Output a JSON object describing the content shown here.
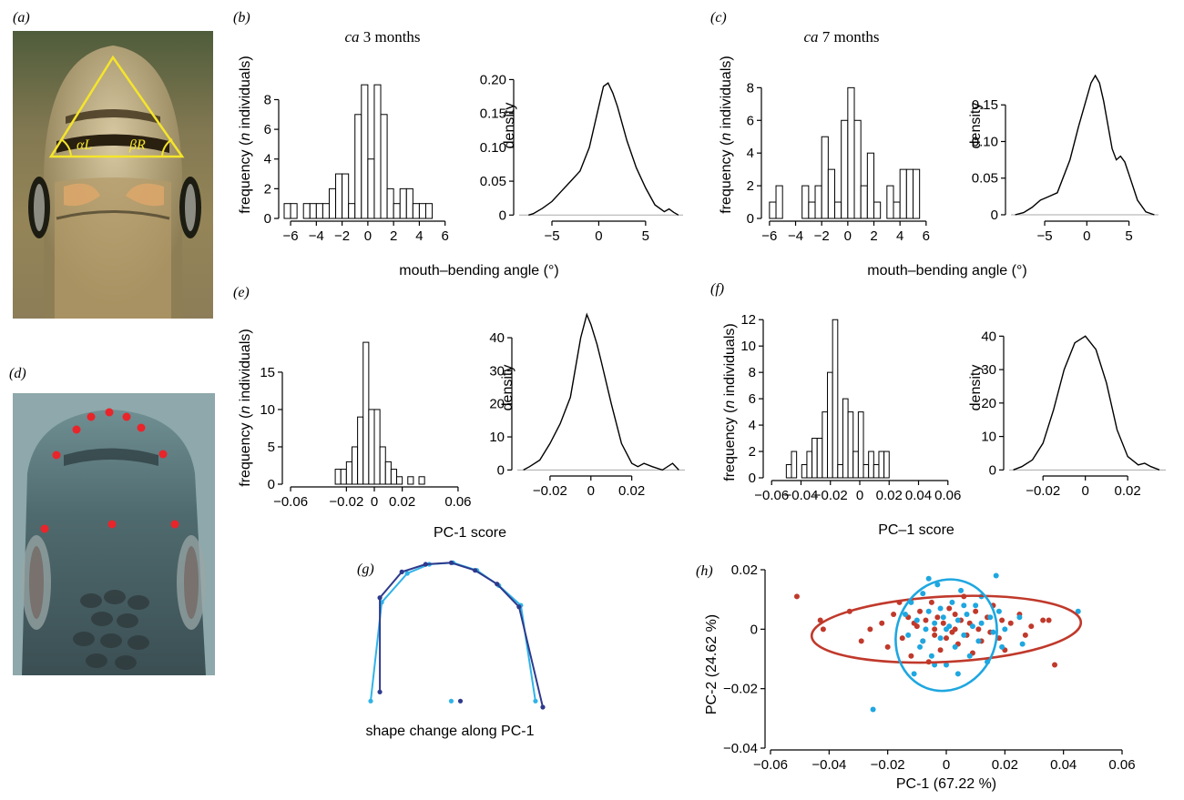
{
  "panels": {
    "a": {
      "label": "(a)",
      "angle_left": "αL",
      "angle_right": "βR"
    },
    "b": {
      "label": "(b)",
      "title_italic": "ca",
      "title_rest": " 3 months"
    },
    "c": {
      "label": "(c)",
      "title_italic": "ca",
      "title_rest": " 7 months"
    },
    "d": {
      "label": "(d)"
    },
    "e": {
      "label": "(e)"
    },
    "f": {
      "label": "(f)"
    },
    "g": {
      "label": "(g)",
      "caption": "shape change along PC-1"
    },
    "h": {
      "label": "(h)"
    }
  },
  "labels": {
    "freq_row1_pre": "frequency (",
    "freq_n": "n",
    "freq_row1_post": " individuals)",
    "freq_e_pre": "frequency (",
    "freq_e_post": "  individuals)",
    "density": "density",
    "mouth_angle": "mouth–bending angle (°)",
    "pc1_score_e": "PC-1 score",
    "pc1_score_f": "PC–1 score",
    "pc1_h": "PC-1 (67.22 %)",
    "pc2_h": "PC-2  (24.62 %)"
  },
  "colors": {
    "red": "#c0392b",
    "blue": "#1ea7e0",
    "dark_blue": "#2e3a8c",
    "light_blue": "#2fb3e8",
    "yellow": "#f5e52a",
    "landmark": "#e8252a"
  },
  "chart_data": [
    {
      "id": "b-hist",
      "type": "bar",
      "title": "ca 3 months",
      "xlabel": "mouth–bending angle (°)",
      "ylabel": "frequency (n individuals)",
      "xlim": [
        -6.5,
        6.8
      ],
      "ylim": [
        0,
        9.5
      ],
      "xticks": [
        -6,
        -4,
        -2,
        0,
        2,
        4,
        6
      ],
      "yticks": [
        0,
        2,
        4,
        6,
        8
      ],
      "bin_start": -6.5,
      "bin_width": 0.5,
      "values": [
        1,
        1,
        0,
        1,
        1,
        1,
        1,
        2,
        3,
        3,
        1,
        7,
        9,
        4,
        9,
        7,
        2,
        1,
        2,
        2,
        1,
        1,
        1,
        0
      ]
    },
    {
      "id": "b-dens",
      "type": "line",
      "ylabel": "density",
      "xlim": [
        -8.5,
        9
      ],
      "ylim": [
        -0.005,
        0.21
      ],
      "xticks": [
        -5,
        0,
        5
      ],
      "yticks": [
        0,
        0.05,
        0.1,
        0.15,
        0.2
      ],
      "ytick_labels": [
        "0",
        "0.05",
        "0.10",
        "0.15",
        "0.20"
      ],
      "x": [
        -7.5,
        -7,
        -6,
        -5,
        -4,
        -3,
        -2,
        -1,
        0,
        0.5,
        1,
        1.5,
        2,
        3,
        4,
        4.5,
        5,
        6,
        7,
        7.5,
        8,
        8.5
      ],
      "y": [
        0,
        0.002,
        0.01,
        0.02,
        0.035,
        0.05,
        0.065,
        0.1,
        0.16,
        0.19,
        0.195,
        0.18,
        0.16,
        0.11,
        0.07,
        0.055,
        0.04,
        0.015,
        0.005,
        0.009,
        0.004,
        0
      ]
    },
    {
      "id": "c-hist",
      "type": "bar",
      "title": "ca 7 months",
      "xlabel": "mouth–bending angle (°)",
      "ylabel": "frequency (n individuals)",
      "xlim": [
        -6.2,
        6.5
      ],
      "ylim": [
        0,
        8.8
      ],
      "xticks": [
        -6,
        -4,
        -2,
        0,
        2,
        4,
        6
      ],
      "yticks": [
        0,
        2,
        4,
        6,
        8
      ],
      "bin_start": -6,
      "bin_width": 0.5,
      "values": [
        1,
        2,
        0,
        0,
        0,
        2,
        1,
        2,
        5,
        3,
        1,
        6,
        8,
        6,
        2,
        4,
        1,
        0,
        2,
        1,
        3,
        3,
        3
      ]
    },
    {
      "id": "c-dens",
      "type": "line",
      "ylabel": "density",
      "xlim": [
        -9,
        8.5
      ],
      "ylim": [
        -0.005,
        0.2
      ],
      "xticks": [
        -5,
        0,
        5
      ],
      "yticks": [
        0,
        0.05,
        0.1,
        0.15
      ],
      "ytick_labels": [
        "0",
        "0.05",
        "0.10",
        "0.15"
      ],
      "x": [
        -8.5,
        -7.5,
        -6.5,
        -5.5,
        -4.5,
        -3.5,
        -2,
        -1,
        0,
        0.5,
        1,
        1.5,
        2,
        3,
        3.5,
        4,
        4.5,
        5,
        6,
        7,
        8
      ],
      "y": [
        0,
        0.003,
        0.01,
        0.02,
        0.025,
        0.03,
        0.075,
        0.12,
        0.16,
        0.18,
        0.19,
        0.18,
        0.155,
        0.09,
        0.075,
        0.08,
        0.072,
        0.055,
        0.02,
        0.004,
        0
      ]
    },
    {
      "id": "e-hist",
      "type": "bar",
      "xlabel": "PC-1 score",
      "ylabel": "frequency (n  individuals)",
      "xlim": [
        -0.062,
        0.062
      ],
      "ylim": [
        0,
        19.5
      ],
      "xticks": [
        -0.06,
        -0.02,
        0,
        0.02,
        0.06
      ],
      "xtick_labels": [
        "−0.06",
        "−0.02",
        "0",
        "0.02",
        "0.06"
      ],
      "yticks": [
        0,
        5,
        10,
        15
      ],
      "bin_start": -0.028,
      "bin_width": 0.004,
      "values": [
        2,
        2,
        3,
        5,
        9,
        19,
        10,
        10,
        5,
        3,
        2,
        1,
        0,
        1,
        0,
        1
      ]
    },
    {
      "id": "e-dens",
      "type": "line",
      "ylabel": "density",
      "xlim": [
        -0.036,
        0.046
      ],
      "ylim": [
        -1,
        48
      ],
      "xticks": [
        -0.02,
        0,
        0.02
      ],
      "xtick_labels": [
        "−0.02",
        "0",
        "0.02"
      ],
      "yticks": [
        0,
        10,
        20,
        30,
        40
      ],
      "x": [
        -0.033,
        -0.03,
        -0.025,
        -0.02,
        -0.015,
        -0.01,
        -0.005,
        -0.002,
        0,
        0.003,
        0.005,
        0.01,
        0.015,
        0.02,
        0.023,
        0.026,
        0.03,
        0.035,
        0.04,
        0.043
      ],
      "y": [
        0,
        1,
        3,
        8,
        14,
        22,
        40,
        47,
        44,
        38,
        33,
        20,
        8,
        2,
        1,
        2,
        1,
        0,
        2,
        0
      ]
    },
    {
      "id": "f-hist",
      "type": "bar",
      "xlabel": "PC–1 score",
      "ylabel": "frequency (n individuals)",
      "xlim": [
        -0.062,
        0.062
      ],
      "ylim": [
        0,
        12.5
      ],
      "xticks": [
        -0.06,
        -0.04,
        -0.02,
        0,
        0.02,
        0.04,
        0.06
      ],
      "xtick_labels": [
        "−0.06",
        "−0.04",
        "−0.02",
        "0",
        "0.02",
        "0.04",
        "0.06"
      ],
      "yticks": [
        0,
        2,
        4,
        6,
        8,
        10,
        12
      ],
      "bin_start": -0.05,
      "bin_width": 0.0035,
      "values": [
        1,
        2,
        0,
        1,
        2,
        3,
        3,
        5,
        8,
        12,
        1,
        6,
        5,
        2,
        5,
        1,
        2,
        1,
        2,
        2
      ]
    },
    {
      "id": "f-dens",
      "type": "line",
      "ylabel": "density",
      "xlim": [
        -0.036,
        0.038
      ],
      "ylim": [
        -1,
        42
      ],
      "xticks": [
        -0.02,
        0,
        0.02
      ],
      "xtick_labels": [
        "−0.02",
        "0",
        "0.02"
      ],
      "yticks": [
        0,
        10,
        20,
        30,
        40
      ],
      "x": [
        -0.034,
        -0.03,
        -0.025,
        -0.02,
        -0.015,
        -0.01,
        -0.005,
        0,
        0.005,
        0.01,
        0.015,
        0.02,
        0.025,
        0.028,
        0.031,
        0.035
      ],
      "y": [
        0,
        1,
        3,
        8,
        18,
        30,
        38,
        40,
        36,
        26,
        12,
        4,
        1.5,
        2,
        1,
        0
      ]
    },
    {
      "id": "g-shape",
      "type": "line",
      "caption": "shape change along PC-1",
      "xlim": [
        0,
        1
      ],
      "ylim": [
        0,
        1
      ],
      "series": [
        {
          "color": "#2fb3e8",
          "x": [
            0.0,
            0.06,
            0.2,
            0.32,
            0.45,
            0.58,
            0.7,
            0.82,
            0.9
          ],
          "y": [
            0.1,
            0.75,
            0.94,
            1.0,
            1.01,
            0.96,
            0.86,
            0.73,
            0.1
          ],
          "extra_point": [
            0.44,
            0.1
          ]
        },
        {
          "color": "#2e3a8c",
          "x": [
            0.05,
            0.05,
            0.17,
            0.3,
            0.44,
            0.57,
            0.69,
            0.81,
            0.94
          ],
          "y": [
            0.16,
            0.78,
            0.95,
            1.0,
            1.01,
            0.96,
            0.87,
            0.72,
            0.06
          ],
          "extra_point": [
            0.49,
            0.1
          ]
        }
      ]
    },
    {
      "id": "h-scatter",
      "type": "scatter",
      "xlabel": "PC-1 (67.22 %)",
      "ylabel": "PC-2  (24.62 %)",
      "xlim": [
        -0.06,
        0.06
      ],
      "ylim": [
        -0.04,
        0.02
      ],
      "xticks": [
        -0.06,
        -0.04,
        -0.02,
        0,
        0.02,
        0.04,
        0.06
      ],
      "xtick_labels": [
        "−0.06",
        "−0.04",
        "−0.02",
        "0",
        "0.02",
        "0.04",
        "0.06"
      ],
      "yticks": [
        -0.04,
        -0.02,
        0,
        0.02
      ],
      "ytick_labels": [
        "−0.04",
        "−0.02",
        "0",
        "0.02"
      ],
      "series": [
        {
          "color": "#c0392b",
          "ellipse": {
            "cx": 0.0,
            "cy": 0.0,
            "rx": 0.046,
            "ry": 0.011,
            "angle": -3
          },
          "points": [
            [
              -0.051,
              0.011
            ],
            [
              -0.043,
              0.003
            ],
            [
              -0.042,
              0.0
            ],
            [
              -0.033,
              0.006
            ],
            [
              -0.029,
              -0.004
            ],
            [
              -0.026,
              0.0
            ],
            [
              -0.022,
              0.002
            ],
            [
              -0.02,
              -0.006
            ],
            [
              -0.018,
              0.005
            ],
            [
              -0.016,
              0.009
            ],
            [
              -0.015,
              -0.003
            ],
            [
              -0.013,
              0.004
            ],
            [
              -0.012,
              -0.009
            ],
            [
              -0.01,
              0.001
            ],
            [
              -0.009,
              0.006
            ],
            [
              -0.008,
              -0.004
            ],
            [
              -0.007,
              0.003
            ],
            [
              -0.006,
              -0.011
            ],
            [
              -0.005,
              0.009
            ],
            [
              -0.004,
              0.0
            ],
            [
              -0.003,
              0.004
            ],
            [
              -0.002,
              -0.007
            ],
            [
              -0.001,
              0.002
            ],
            [
              0.0,
              -0.003
            ],
            [
              0.001,
              0.007
            ],
            [
              0.002,
              -0.001
            ],
            [
              0.003,
              0.005
            ],
            [
              0.004,
              -0.005
            ],
            [
              0.005,
              0.003
            ],
            [
              0.006,
              0.011
            ],
            [
              0.007,
              -0.002
            ],
            [
              0.008,
              0.002
            ],
            [
              0.009,
              -0.008
            ],
            [
              0.01,
              0.006
            ],
            [
              0.011,
              0.0
            ],
            [
              0.012,
              -0.004
            ],
            [
              0.014,
              0.004
            ],
            [
              0.015,
              -0.001
            ],
            [
              0.016,
              0.008
            ],
            [
              0.018,
              -0.003
            ],
            [
              0.019,
              0.003
            ],
            [
              0.02,
              -0.007
            ],
            [
              0.022,
              0.002
            ],
            [
              0.025,
              0.005
            ],
            [
              0.027,
              -0.002
            ],
            [
              0.029,
              0.001
            ],
            [
              0.033,
              0.003
            ],
            [
              0.035,
              0.003
            ],
            [
              0.037,
              -0.012
            ],
            [
              -0.011,
              0.002
            ],
            [
              0.003,
              0.0
            ],
            [
              -0.004,
              -0.002
            ]
          ]
        },
        {
          "color": "#1ea7e0",
          "ellipse": {
            "cx": 0.0,
            "cy": -0.002,
            "rx": 0.017,
            "ry": 0.019,
            "angle": 20
          },
          "points": [
            [
              -0.025,
              -0.027
            ],
            [
              -0.014,
              0.005
            ],
            [
              -0.013,
              -0.002
            ],
            [
              -0.012,
              0.009
            ],
            [
              -0.011,
              -0.015
            ],
            [
              -0.01,
              0.003
            ],
            [
              -0.009,
              -0.006
            ],
            [
              -0.008,
              0.012
            ],
            [
              -0.007,
              0.0
            ],
            [
              -0.006,
              0.006
            ],
            [
              -0.005,
              -0.009
            ],
            [
              -0.004,
              0.002
            ],
            [
              -0.003,
              0.015
            ],
            [
              -0.002,
              -0.003
            ],
            [
              -0.001,
              0.004
            ],
            [
              0.0,
              -0.012
            ],
            [
              0.001,
              0.001
            ],
            [
              0.002,
              0.009
            ],
            [
              0.003,
              -0.006
            ],
            [
              0.004,
              0.003
            ],
            [
              0.005,
              0.013
            ],
            [
              0.006,
              -0.002
            ],
            [
              0.007,
              0.005
            ],
            [
              0.008,
              -0.009
            ],
            [
              0.009,
              0.001
            ],
            [
              0.01,
              0.008
            ],
            [
              0.011,
              -0.004
            ],
            [
              0.012,
              0.002
            ],
            [
              0.014,
              -0.011
            ],
            [
              0.015,
              0.004
            ],
            [
              0.016,
              -0.001
            ],
            [
              0.017,
              0.018
            ],
            [
              0.018,
              0.006
            ],
            [
              0.019,
              -0.006
            ],
            [
              0.02,
              0.0
            ],
            [
              0.025,
              0.004
            ],
            [
              0.026,
              -0.005
            ],
            [
              0.045,
              0.006
            ],
            [
              -0.006,
              0.017
            ],
            [
              -0.002,
              0.007
            ],
            [
              0.004,
              -0.015
            ],
            [
              -0.008,
              -0.004
            ],
            [
              0.012,
              0.011
            ],
            [
              0.0,
              0.0
            ],
            [
              0.006,
              0.008
            ],
            [
              -0.004,
              -0.012
            ]
          ]
        }
      ]
    }
  ]
}
